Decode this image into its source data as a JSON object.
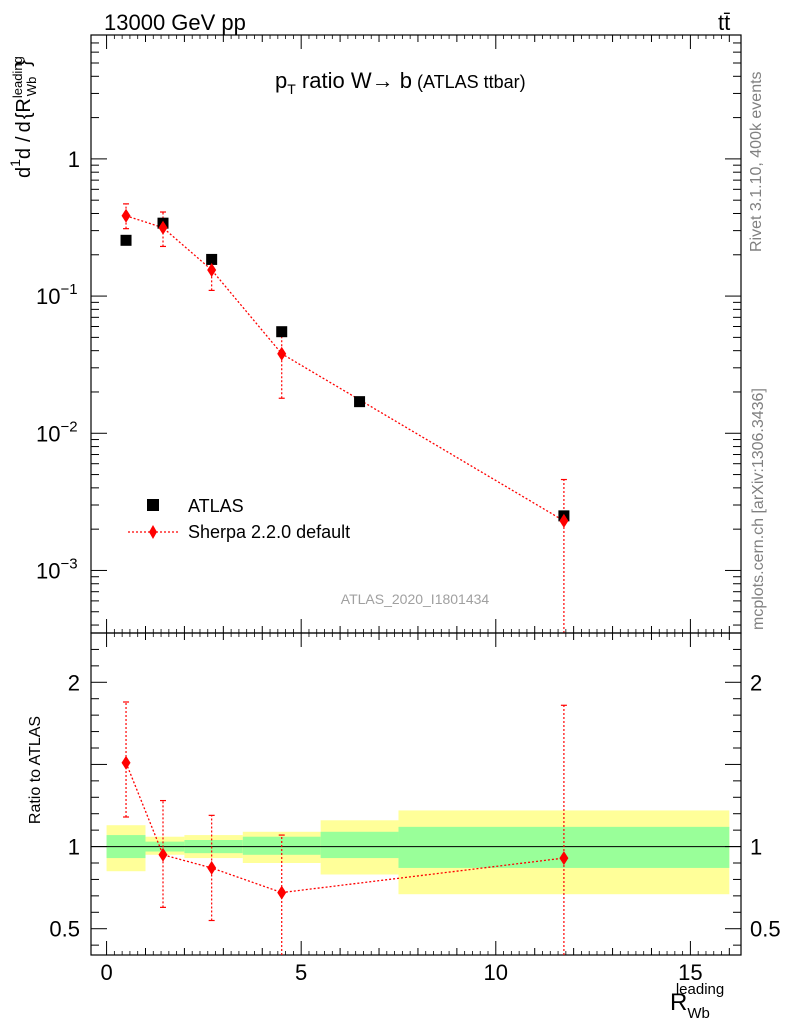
{
  "header": {
    "left": "13000 GeV pp",
    "right": "tt̄",
    "plot_title_main": "p",
    "plot_title_sub": "T",
    "plot_title_rest": " ratio W",
    "plot_title_arrow": "→",
    "plot_title_b": " b",
    "plot_title_paren": " (ATLAS ttbar)"
  },
  "side_labels": {
    "rivet": "Rivet 3.1.10,  400k events",
    "mcplots": "mcplots.cern.ch [arXiv:1306.3436]"
  },
  "watermark": "ATLAS_2020_I1801434",
  "axes": {
    "ylabel_top": "1/σ dσ^fid / d{R_Wb^leading}",
    "ylabel_bottom": "Ratio to ATLAS",
    "xlabel_main": "R",
    "xlabel_sub": "Wb",
    "xlabel_sup": "leading"
  },
  "legend": [
    {
      "name": "ATLAS",
      "marker": "square",
      "color": "#000000"
    },
    {
      "name": "Sherpa 2.2.0 default",
      "marker": "diamond",
      "color": "#ff0000"
    }
  ],
  "colors": {
    "data": "#000000",
    "mc": "#ff0000",
    "band_inner": "#99ff99",
    "band_outer": "#ffff99"
  },
  "chart_data": [
    {
      "type": "scatter",
      "yscale": "log",
      "xlim": [
        -0.4,
        16.3
      ],
      "ylim": [
        0.00035,
        8
      ],
      "y_ticks": [
        {
          "value": 1,
          "label": "1",
          "exp": ""
        },
        {
          "value": 0.1,
          "label": "10",
          "exp": "−1"
        },
        {
          "value": 0.01,
          "label": "10",
          "exp": "−2"
        },
        {
          "value": 0.001,
          "label": "10",
          "exp": "−3"
        }
      ],
      "series": [
        {
          "name": "ATLAS",
          "x": [
            0.5,
            1.45,
            2.7,
            4.5,
            6.5,
            11.75
          ],
          "y": [
            0.255,
            0.34,
            0.185,
            0.055,
            0.017,
            0.0025
          ],
          "x_lo": [
            0,
            1,
            2,
            3.5,
            5.5,
            7.5
          ],
          "x_hi": [
            1,
            2,
            3.5,
            5.5,
            7.5,
            16
          ]
        },
        {
          "name": "Sherpa 2.2.0 default",
          "x": [
            0.5,
            1.45,
            2.7,
            4.5,
            11.75
          ],
          "y": [
            0.385,
            0.315,
            0.155,
            0.038,
            0.0023
          ],
          "y_lo": [
            0.31,
            0.23,
            0.11,
            0.018,
            0.00035
          ],
          "y_hi": [
            0.47,
            0.41,
            0.2,
            0.056,
            0.0046
          ]
        }
      ]
    },
    {
      "type": "scatter",
      "yscale": "linear",
      "xlim": [
        -0.4,
        16.3
      ],
      "ylim": [
        0.34,
        2.3
      ],
      "y_ticks": [
        {
          "value": 2,
          "label": "2"
        },
        {
          "value": 1,
          "label": "1"
        },
        {
          "value": 0.5,
          "label": "0.5"
        }
      ],
      "x_ticks": [
        {
          "value": 0,
          "label": "0"
        },
        {
          "value": 5,
          "label": "5"
        },
        {
          "value": 10,
          "label": "10"
        },
        {
          "value": 15,
          "label": "15"
        }
      ],
      "bands": [
        {
          "x0": 0,
          "x1": 1,
          "inner": [
            0.93,
            1.07
          ],
          "outer": [
            0.85,
            1.13
          ]
        },
        {
          "x0": 1,
          "x1": 2,
          "inner": [
            0.97,
            1.03
          ],
          "outer": [
            0.95,
            1.06
          ]
        },
        {
          "x0": 2,
          "x1": 3.5,
          "inner": [
            0.96,
            1.04
          ],
          "outer": [
            0.93,
            1.07
          ]
        },
        {
          "x0": 3.5,
          "x1": 5.5,
          "inner": [
            0.95,
            1.06
          ],
          "outer": [
            0.9,
            1.09
          ]
        },
        {
          "x0": 5.5,
          "x1": 7.5,
          "inner": [
            0.93,
            1.09
          ],
          "outer": [
            0.83,
            1.16
          ]
        },
        {
          "x0": 7.5,
          "x1": 16,
          "inner": [
            0.87,
            1.12
          ],
          "outer": [
            0.71,
            1.22
          ]
        }
      ],
      "series": [
        {
          "name": "Sherpa 2.2.0 default",
          "x": [
            0.5,
            1.45,
            2.7,
            4.5,
            11.75
          ],
          "y": [
            1.51,
            0.95,
            0.87,
            0.72,
            0.93
          ],
          "y_lo": [
            1.18,
            0.63,
            0.55,
            0.34,
            0.34
          ],
          "y_hi": [
            1.88,
            1.28,
            1.19,
            1.07,
            1.86
          ]
        }
      ]
    }
  ]
}
